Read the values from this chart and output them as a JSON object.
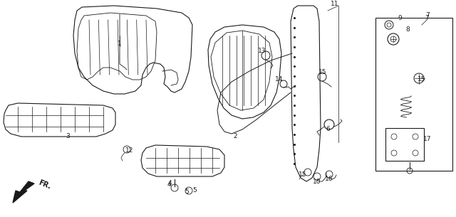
{
  "bg_color": "#ffffff",
  "line_color": "#1a1a1a",
  "figsize": [
    6.4,
    3.05
  ],
  "dpi": 100,
  "labels": [
    [
      "1",
      175,
      65
    ],
    [
      "2",
      335,
      195
    ],
    [
      "3",
      95,
      190
    ],
    [
      "4",
      248,
      258
    ],
    [
      "5",
      268,
      268
    ],
    [
      "6",
      448,
      178
    ],
    [
      "7",
      598,
      28
    ],
    [
      "8",
      574,
      45
    ],
    [
      "9",
      562,
      28
    ],
    [
      "10",
      447,
      248
    ],
    [
      "11",
      468,
      12
    ],
    [
      "12",
      188,
      208
    ],
    [
      "13",
      370,
      72
    ],
    [
      "14",
      392,
      115
    ],
    [
      "15",
      448,
      105
    ],
    [
      "15",
      432,
      242
    ],
    [
      "15",
      590,
      118
    ],
    [
      "16",
      460,
      248
    ],
    [
      "17",
      598,
      185
    ]
  ]
}
